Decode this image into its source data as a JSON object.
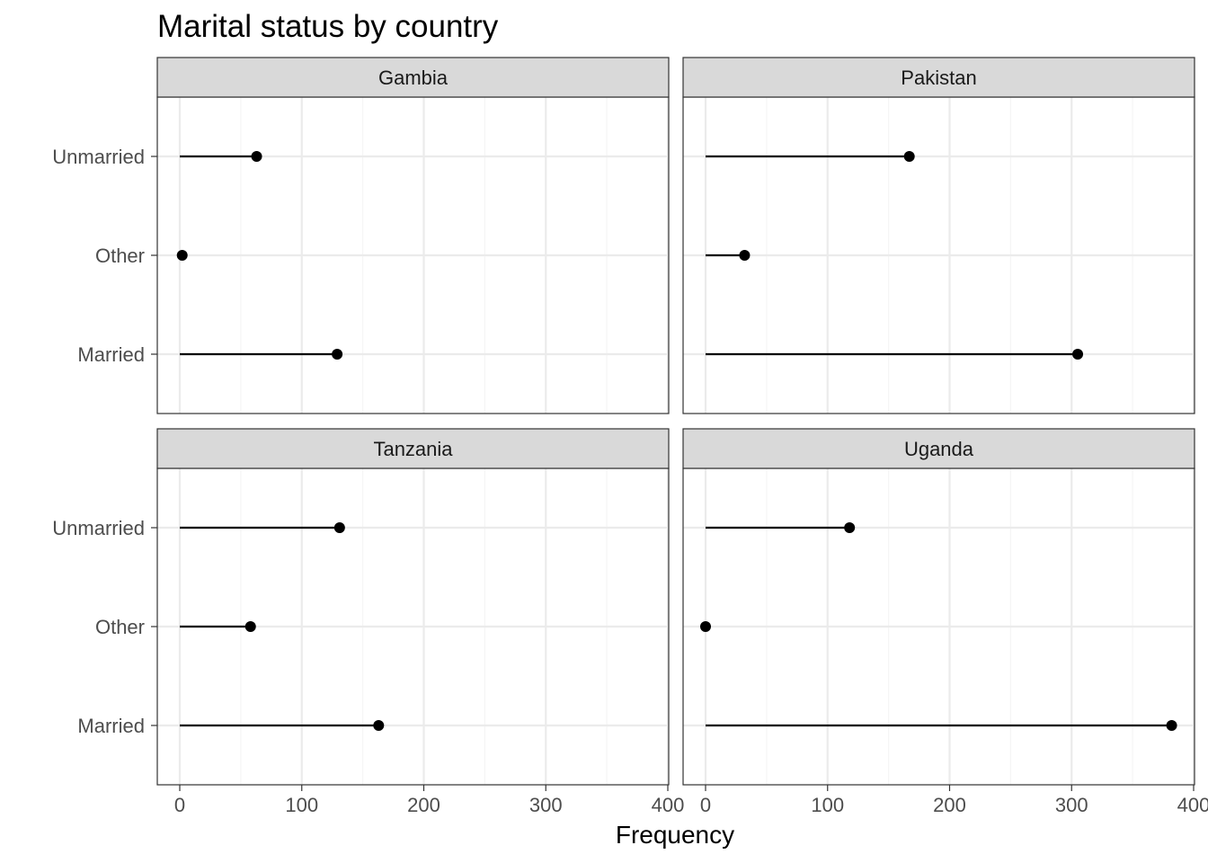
{
  "chart_data": {
    "type": "lollipop",
    "title": "Marital status by country",
    "xlabel": "Frequency",
    "ylabel": "",
    "xlim": [
      0,
      400
    ],
    "x_ticks": [
      "0",
      "100",
      "200",
      "300",
      "400"
    ],
    "categories": [
      "Unmarried",
      "Other",
      "Married"
    ],
    "grid": true,
    "facets": [
      {
        "name": "Gambia",
        "values": {
          "Unmarried": 63,
          "Other": 2,
          "Married": 129
        }
      },
      {
        "name": "Pakistan",
        "values": {
          "Unmarried": 167,
          "Other": 32,
          "Married": 305
        }
      },
      {
        "name": "Tanzania",
        "values": {
          "Unmarried": 131,
          "Other": 58,
          "Married": 163
        }
      },
      {
        "name": "Uganda",
        "values": {
          "Unmarried": 118,
          "Other": 0,
          "Married": 382
        }
      }
    ],
    "colors": {
      "point": "#000000",
      "segment": "#000000",
      "strip_fill": "#d9d9d9",
      "grid_major": "#ebebeb",
      "grid_minor": "#f5f5f5",
      "panel_border": "#333333"
    }
  }
}
